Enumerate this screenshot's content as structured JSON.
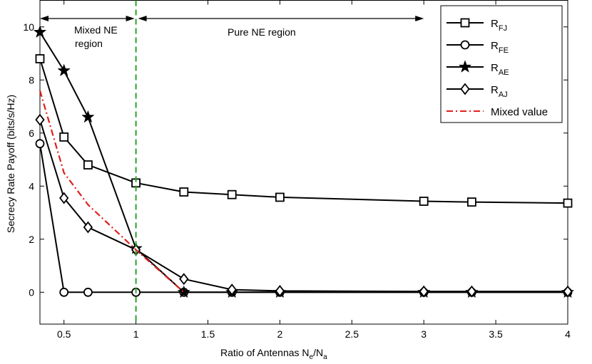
{
  "chart_data": {
    "type": "line",
    "title": "",
    "xlabel": "Ratio of Antennas N",
    "xlabel_sub1": "e",
    "xlabel_slash": "/N",
    "xlabel_sub2": "a",
    "ylabel": "Secrecy Rate Payoff (bits/s/Hz)",
    "xlim": [
      0.333,
      4.0
    ],
    "ylim": [
      -1.2,
      11.0
    ],
    "xticks": [
      0.5,
      1,
      1.5,
      2,
      2.5,
      3,
      3.5,
      4
    ],
    "xtick_labels": [
      "0.5",
      "1",
      "1.5",
      "2",
      "2.5",
      "3",
      "3.5",
      "4"
    ],
    "yticks": [
      0,
      2,
      4,
      6,
      8,
      10
    ],
    "ytick_labels": [
      "0",
      "2",
      "4",
      "6",
      "8",
      "10"
    ],
    "grid": false,
    "legend_position": "top-right",
    "x": [
      0.333,
      0.5,
      0.667,
      1.0,
      1.333,
      1.667,
      2.0,
      3.0,
      3.333,
      4.0
    ],
    "series": [
      {
        "name": "R",
        "sub": "FJ",
        "marker": "square",
        "color": "#000000",
        "dash": "solid",
        "values": [
          8.8,
          5.85,
          4.8,
          4.12,
          3.78,
          3.68,
          3.58,
          3.43,
          3.4,
          3.36
        ]
      },
      {
        "name": "R",
        "sub": "FE",
        "marker": "circle",
        "color": "#000000",
        "dash": "solid",
        "values": [
          5.6,
          0.0,
          0.0,
          0.0,
          0.0,
          0.0,
          0.0,
          0.0,
          0.0,
          0.0
        ]
      },
      {
        "name": "R",
        "sub": "AE",
        "marker": "star",
        "color": "#000000",
        "dash": "solid",
        "values": [
          9.8,
          8.35,
          6.6,
          1.65,
          0.0,
          0.0,
          0.0,
          0.0,
          0.0,
          0.0
        ]
      },
      {
        "name": "R",
        "sub": "AJ",
        "marker": "diamond",
        "color": "#000000",
        "dash": "solid",
        "values": [
          6.5,
          3.55,
          2.45,
          1.6,
          0.5,
          0.1,
          0.05,
          0.03,
          0.03,
          0.03
        ]
      },
      {
        "name": "Mixed value",
        "sub": "",
        "marker": "none",
        "color": "#e0201b",
        "dash": "dashdot",
        "x": [
          0.333,
          0.5,
          0.667,
          1.0,
          1.333
        ],
        "values": [
          7.6,
          4.5,
          3.3,
          1.6,
          0.0
        ]
      }
    ],
    "boundary": {
      "x": 1.0,
      "color": "#2aa02a"
    },
    "annotations": {
      "mixed_region_line1": "Mixed NE",
      "mixed_region_line2": "region",
      "pure_region": "Pure NE region",
      "mixed_arrow_x": [
        0.333,
        1.0
      ],
      "pure_arrow_x": [
        1.0,
        3.0
      ]
    }
  }
}
